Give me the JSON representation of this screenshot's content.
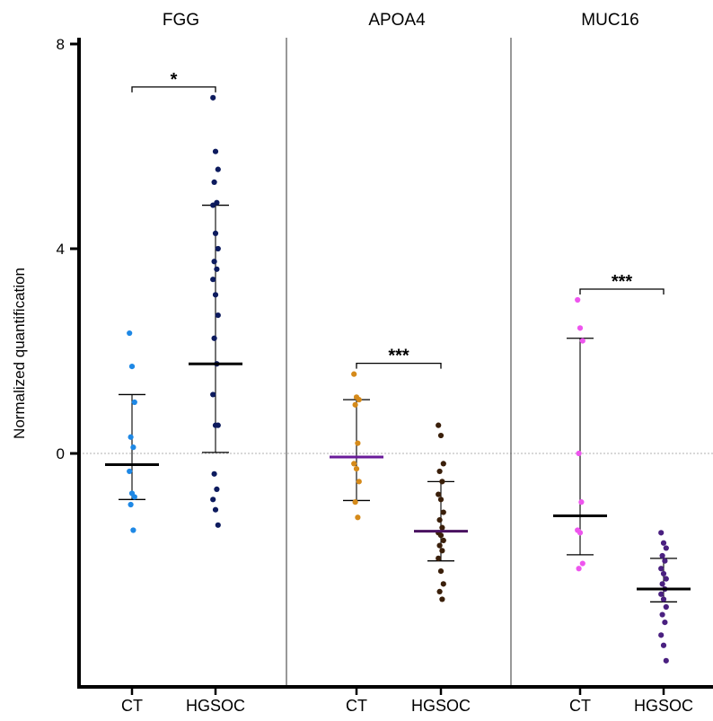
{
  "chart_data": {
    "type": "scatter",
    "ylabel": "Normalized quantification",
    "ylim": [
      -4.5,
      8
    ],
    "yticks": [
      0,
      4,
      8
    ],
    "reference_line_y": 0,
    "categories": [
      "CT",
      "HGSOC"
    ],
    "colors": {
      "FGG": {
        "CT": "#1e88e5",
        "HGSOC": "#0d1b5e"
      },
      "APOA4": {
        "CT": "#d58a1a",
        "HGSOC": "#3a1f0a"
      },
      "MUC16": {
        "CT": "#ee55ee",
        "HGSOC": "#4a2080"
      },
      "APOA4_CT_mean": "#6a1b9a",
      "APOA4_HGSOC_mean": "#4a1260"
    },
    "panels": [
      {
        "name": "FGG",
        "significance": "*",
        "groups": [
          {
            "category": "CT",
            "mean": -0.22,
            "sd_low": -0.9,
            "sd_high": 1.15,
            "values": [
              2.35,
              1.7,
              1.0,
              0.32,
              0.12,
              -0.35,
              -0.78,
              -0.85,
              -1.0,
              -1.5
            ]
          },
          {
            "category": "HGSOC",
            "mean": 1.75,
            "sd_low": 0.02,
            "sd_high": 4.85,
            "values": [
              6.95,
              5.9,
              5.55,
              5.3,
              4.9,
              4.85,
              4.3,
              4.0,
              3.75,
              3.6,
              3.4,
              3.1,
              2.7,
              2.25,
              1.75,
              1.15,
              0.55,
              0.55,
              -0.4,
              -0.7,
              -0.9,
              -1.1,
              -1.4
            ]
          }
        ]
      },
      {
        "name": "APOA4",
        "significance": "***",
        "groups": [
          {
            "category": "CT",
            "mean": -0.07,
            "sd_low": -0.92,
            "sd_high": 1.05,
            "values": [
              1.55,
              1.1,
              1.05,
              0.95,
              0.2,
              -0.2,
              -0.3,
              -0.55,
              -0.95,
              -1.25
            ]
          },
          {
            "category": "HGSOC",
            "mean": -1.52,
            "sd_low": -2.1,
            "sd_high": -0.55,
            "values": [
              0.55,
              0.35,
              -0.2,
              -0.35,
              -0.55,
              -0.8,
              -0.9,
              -1.15,
              -1.3,
              -1.45,
              -1.55,
              -1.6,
              -1.7,
              -1.8,
              -1.9,
              -2.05,
              -2.3,
              -2.55,
              -2.7,
              -2.85
            ]
          }
        ]
      },
      {
        "name": "MUC16",
        "significance": "***",
        "groups": [
          {
            "category": "CT",
            "mean": -1.22,
            "sd_low": -1.98,
            "sd_high": 2.25,
            "values": [
              3.0,
              2.45,
              2.2,
              0.0,
              -0.95,
              -1.5,
              -1.55,
              -2.15,
              -2.25
            ]
          },
          {
            "category": "HGSOC",
            "mean": -2.65,
            "sd_low": -2.9,
            "sd_high": -2.05,
            "values": [
              -1.55,
              -1.75,
              -1.85,
              -2.0,
              -2.1,
              -2.25,
              -2.35,
              -2.45,
              -2.55,
              -2.65,
              -2.75,
              -2.85,
              -3.0,
              -3.15,
              -3.3,
              -3.55,
              -3.75,
              -4.05
            ]
          }
        ]
      }
    ]
  }
}
